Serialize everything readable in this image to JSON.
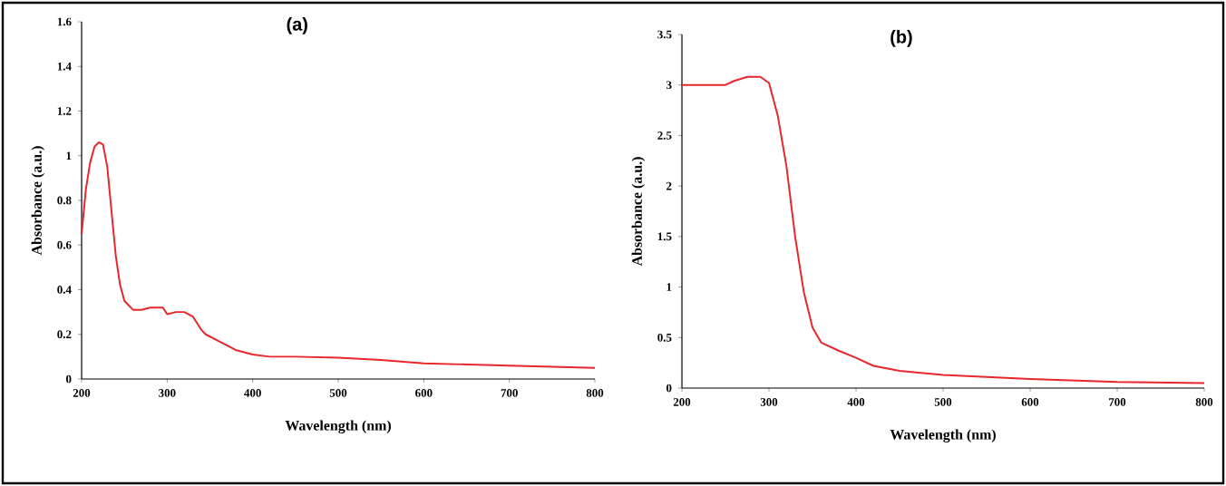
{
  "chart_data": [
    {
      "type": "line",
      "title": "(a)",
      "xlabel": "Wavelength (nm)",
      "ylabel": "Absorbance  (a.u.)",
      "color": "#e8262b",
      "x": [
        200,
        205,
        210,
        215,
        220,
        225,
        230,
        235,
        240,
        245,
        250,
        260,
        270,
        280,
        290,
        295,
        300,
        305,
        310,
        320,
        330,
        340,
        345,
        360,
        380,
        400,
        420,
        450,
        500,
        550,
        600,
        700,
        800
      ],
      "values": [
        0.65,
        0.85,
        0.97,
        1.04,
        1.06,
        1.05,
        0.95,
        0.75,
        0.55,
        0.42,
        0.35,
        0.31,
        0.31,
        0.32,
        0.32,
        0.32,
        0.29,
        0.295,
        0.3,
        0.3,
        0.28,
        0.22,
        0.2,
        0.17,
        0.13,
        0.11,
        0.1,
        0.1,
        0.095,
        0.085,
        0.07,
        0.06,
        0.05
      ],
      "xlim": [
        200,
        800
      ],
      "ylim": [
        0,
        1.6
      ],
      "xticks": [
        200,
        300,
        400,
        500,
        600,
        700,
        800
      ],
      "yticks": [
        0,
        0.2,
        0.4,
        0.6,
        0.8,
        1,
        1.2,
        1.4,
        1.6
      ]
    },
    {
      "type": "line",
      "title": "(b)",
      "xlabel": "Wavelength (nm)",
      "ylabel": "Absorbance (a.u.)",
      "color": "#e8262b",
      "x": [
        200,
        250,
        260,
        275,
        290,
        300,
        310,
        320,
        330,
        340,
        350,
        360,
        380,
        400,
        420,
        450,
        500,
        600,
        700,
        800
      ],
      "values": [
        3.0,
        3.0,
        3.04,
        3.08,
        3.08,
        3.02,
        2.7,
        2.2,
        1.5,
        0.95,
        0.6,
        0.45,
        0.37,
        0.3,
        0.22,
        0.17,
        0.13,
        0.09,
        0.06,
        0.05
      ],
      "xlim": [
        200,
        800
      ],
      "ylim": [
        0,
        3.5
      ],
      "xticks": [
        200,
        300,
        400,
        500,
        600,
        700,
        800
      ],
      "yticks": [
        0,
        0.5,
        1,
        1.5,
        2,
        2.5,
        3,
        3.5
      ]
    }
  ]
}
